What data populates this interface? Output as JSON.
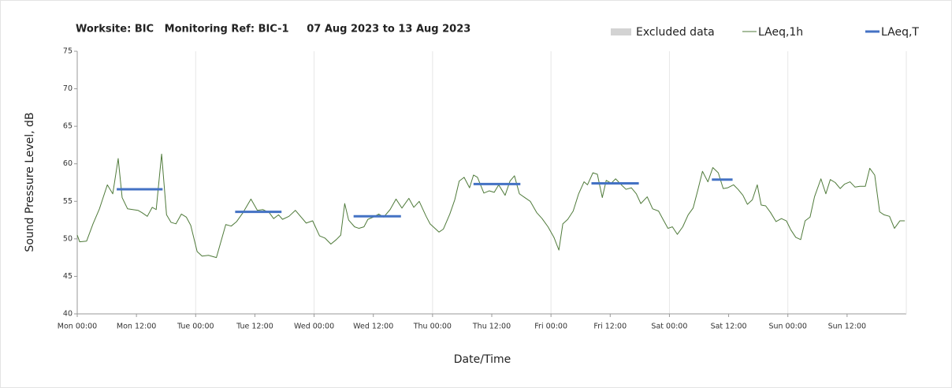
{
  "chart_data": {
    "type": "line",
    "title": "Worksite: BIC   Monitoring Ref: BIC-1     07 Aug 2023 to 13 Aug 2023",
    "x_label": "Date/Time",
    "y_label": "Sound Pressure Level, dB",
    "xlim": [
      0,
      168
    ],
    "ylim": [
      40,
      75
    ],
    "yticks": [
      40,
      45,
      50,
      55,
      60,
      65,
      70,
      75
    ],
    "xticks": [
      {
        "value": 0,
        "label": "Mon 00:00"
      },
      {
        "value": 12,
        "label": "Mon 12:00"
      },
      {
        "value": 24,
        "label": "Tue 00:00"
      },
      {
        "value": 36,
        "label": "Tue 12:00"
      },
      {
        "value": 48,
        "label": "Wed 00:00"
      },
      {
        "value": 60,
        "label": "Wed 12:00"
      },
      {
        "value": 72,
        "label": "Thu 00:00"
      },
      {
        "value": 84,
        "label": "Thu 12:00"
      },
      {
        "value": 96,
        "label": "Fri 00:00"
      },
      {
        "value": 108,
        "label": "Fri 12:00"
      },
      {
        "value": 120,
        "label": "Sat 00:00"
      },
      {
        "value": 132,
        "label": "Sat 12:00"
      },
      {
        "value": 144,
        "label": "Sun 00:00"
      },
      {
        "value": 156,
        "label": "Sun 12:00"
      }
    ],
    "grid": "x-days",
    "series": [
      {
        "name": "Excluded data",
        "color": "#d3d3d3",
        "x": [],
        "values": []
      },
      {
        "name": "LAeq,1h",
        "color": "#4f7a3a",
        "x": [
          0,
          0.5,
          1.9,
          3.2,
          4.5,
          6.1,
          7.2,
          8.3,
          9.1,
          10.2,
          12.3,
          13.1,
          14.2,
          15.2,
          16,
          17.1,
          18.1,
          19,
          20,
          21.1,
          22.1,
          23,
          24.3,
          25.3,
          26.6,
          28.2,
          30.1,
          31.2,
          32.3,
          33.6,
          35.2,
          36.5,
          37.6,
          38.9,
          39.8,
          40.8,
          41.6,
          42.9,
          44.2,
          46.4,
          47.7,
          49.1,
          50.2,
          51.4,
          52.5,
          53.4,
          54.2,
          55,
          56.2,
          57.1,
          58.1,
          58.9,
          60,
          61.1,
          62.1,
          63.4,
          64.6,
          65.8,
          67.2,
          68.2,
          69.3,
          70.7,
          71.5,
          73.3,
          74.2,
          75.5,
          76.5,
          77.4,
          78.4,
          79.5,
          80.3,
          81.1,
          82.4,
          83.5,
          84.5,
          85.4,
          86.7,
          87.7,
          88.6,
          89.6,
          90.7,
          91.8,
          93.1,
          94.2,
          95.4,
          96.6,
          97.6,
          98.4,
          99.4,
          100.5,
          101.6,
          102.7,
          103.4,
          104.5,
          105.4,
          106.4,
          107.2,
          108.2,
          109.1,
          110.1,
          111.2,
          112.3,
          113.3,
          114.2,
          115.5,
          116.6,
          117.8,
          118.7,
          119.7,
          120.6,
          121.6,
          122.7,
          123.8,
          124.8,
          125.8,
          126.7,
          127.8,
          128.8,
          129.9,
          130.9,
          131.8,
          133,
          133.9,
          134.9,
          135.8,
          136.8,
          137.8,
          138.6,
          139.5,
          140.5,
          141.6,
          142.7,
          143.7,
          144.6,
          145.6,
          146.6,
          147.5,
          148.5,
          149.4,
          150.7,
          151.7,
          152.6,
          153.6,
          154.6,
          155.5,
          156.6,
          157.6,
          158.6,
          159.7,
          160.6,
          161.6,
          162.6,
          163.5,
          164.6,
          165.6,
          166.7,
          167.7
        ],
        "values": [
          50.5,
          49.6,
          49.7,
          52,
          54,
          57.2,
          56,
          60.7,
          55.5,
          54,
          53.8,
          53.5,
          53,
          54.2,
          53.9,
          61.3,
          53.2,
          52.2,
          52,
          53.3,
          52.9,
          51.8,
          48.3,
          47.7,
          47.8,
          47.5,
          51.9,
          51.7,
          52.3,
          53.5,
          55.3,
          53.8,
          53.9,
          53.5,
          52.7,
          53.2,
          52.6,
          53,
          53.8,
          52.1,
          52.4,
          50.4,
          50.1,
          49.3,
          49.9,
          50.5,
          54.7,
          52.5,
          51.6,
          51.4,
          51.6,
          52.6,
          52.9,
          53.3,
          52.9,
          53.9,
          55.3,
          54.1,
          55.4,
          54.2,
          55,
          53,
          52,
          50.9,
          51.3,
          53.3,
          55.2,
          57.7,
          58.2,
          56.8,
          58.5,
          58.2,
          56.1,
          56.4,
          56.2,
          57.2,
          55.8,
          57.7,
          58.4,
          56,
          55.5,
          55,
          53.5,
          52.7,
          51.6,
          50.2,
          48.5,
          52,
          52.6,
          53.7,
          56,
          57.6,
          57.2,
          58.8,
          58.6,
          55.5,
          57.8,
          57.4,
          58,
          57.3,
          56.6,
          56.8,
          56,
          54.7,
          55.6,
          54,
          53.7,
          52.6,
          51.4,
          51.6,
          50.6,
          51.6,
          53.2,
          54.1,
          56.6,
          59,
          57.6,
          59.5,
          58.8,
          56.7,
          56.8,
          57.2,
          56.6,
          55.8,
          54.6,
          55.2,
          57.2,
          54.5,
          54.4,
          53.5,
          52.3,
          52.7,
          52.4,
          51.2,
          50.2,
          49.9,
          52.4,
          52.9,
          55.6,
          58,
          56,
          57.9,
          57.5,
          56.7,
          57.3,
          57.6,
          56.9,
          57,
          57,
          59.4,
          58.5,
          53.6,
          53.2,
          53,
          51.4,
          52.4,
          52.4
        ]
      },
      {
        "name": "LAeq,T",
        "color": "#4472c4",
        "x": [
          8,
          17.3,
          24,
          32,
          41.4,
          48,
          56,
          65.6,
          72,
          80.3,
          89.8,
          96,
          104.2,
          113.8,
          120,
          128.6,
          132.8
        ],
        "values": [
          56.6,
          56.6,
          null,
          53.6,
          53.6,
          null,
          53.0,
          53.0,
          null,
          57.3,
          57.3,
          null,
          57.4,
          57.4,
          null,
          57.9,
          57.9
        ]
      }
    ]
  }
}
